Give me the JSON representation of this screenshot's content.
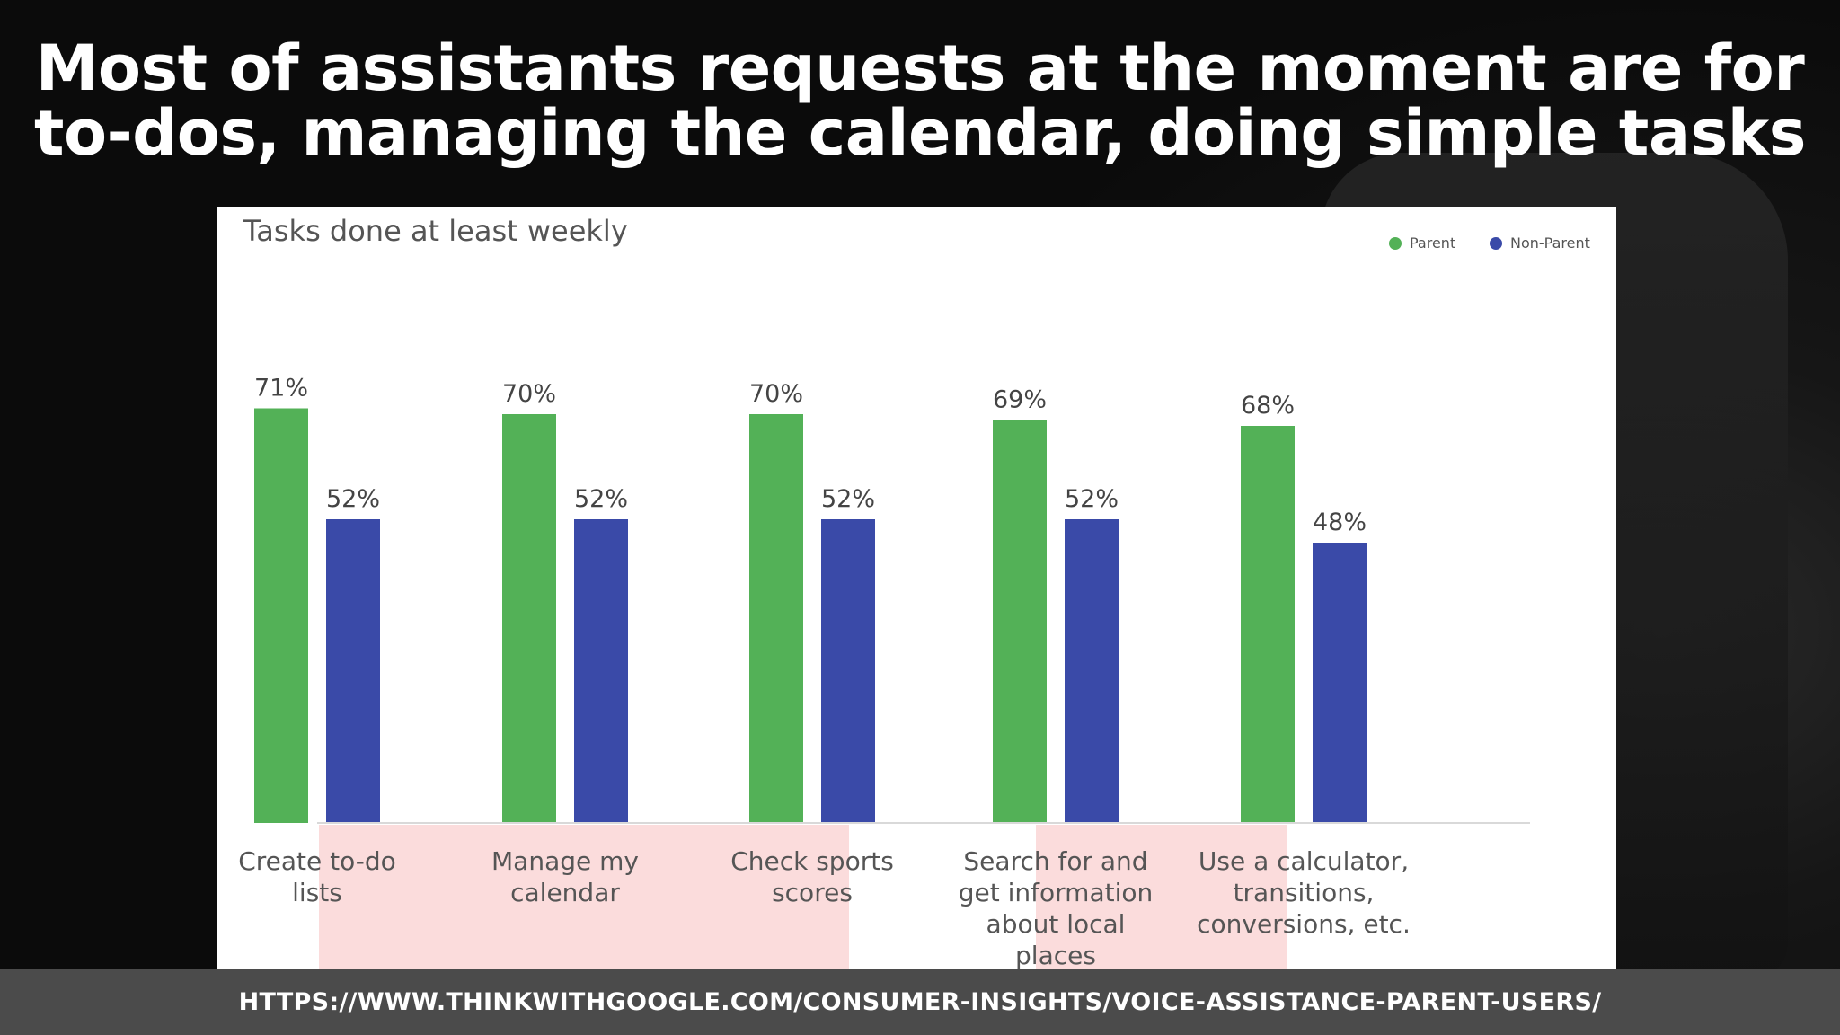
{
  "slide": {
    "title_line1": "Most of assistants requests at the moment are for",
    "title_line2": "to-dos, managing the calendar, doing simple tasks",
    "source_url": "HTTPS://WWW.THINKWITHGOOGLE.COM/CONSUMER-INSIGHTS/VOICE-ASSISTANCE-PARENT-USERS/"
  },
  "chart_data": {
    "type": "bar",
    "title": "Tasks done at least weekly",
    "xlabel": "",
    "ylabel": "",
    "ylim": [
      0,
      100
    ],
    "grid": false,
    "legend_position": "top-right",
    "categories": [
      [
        "Create to-do",
        "lists"
      ],
      [
        "Manage my",
        "calendar"
      ],
      [
        "Check sports",
        "scores"
      ],
      [
        "Search for and",
        "get information",
        "about local",
        "places"
      ],
      [
        "Use a calculator,",
        "transitions,",
        "conversions, etc."
      ]
    ],
    "category_highlight": [
      true,
      true,
      true,
      false,
      true
    ],
    "series": [
      {
        "name": "Parent",
        "color": "#53b157",
        "values": [
          71,
          70,
          70,
          69,
          68
        ]
      },
      {
        "name": "Non-Parent",
        "color": "#3a4aa8",
        "values": [
          52,
          52,
          52,
          52,
          48
        ]
      }
    ],
    "value_label_suffix": "%",
    "highlight_color": "#fbdcdc"
  }
}
